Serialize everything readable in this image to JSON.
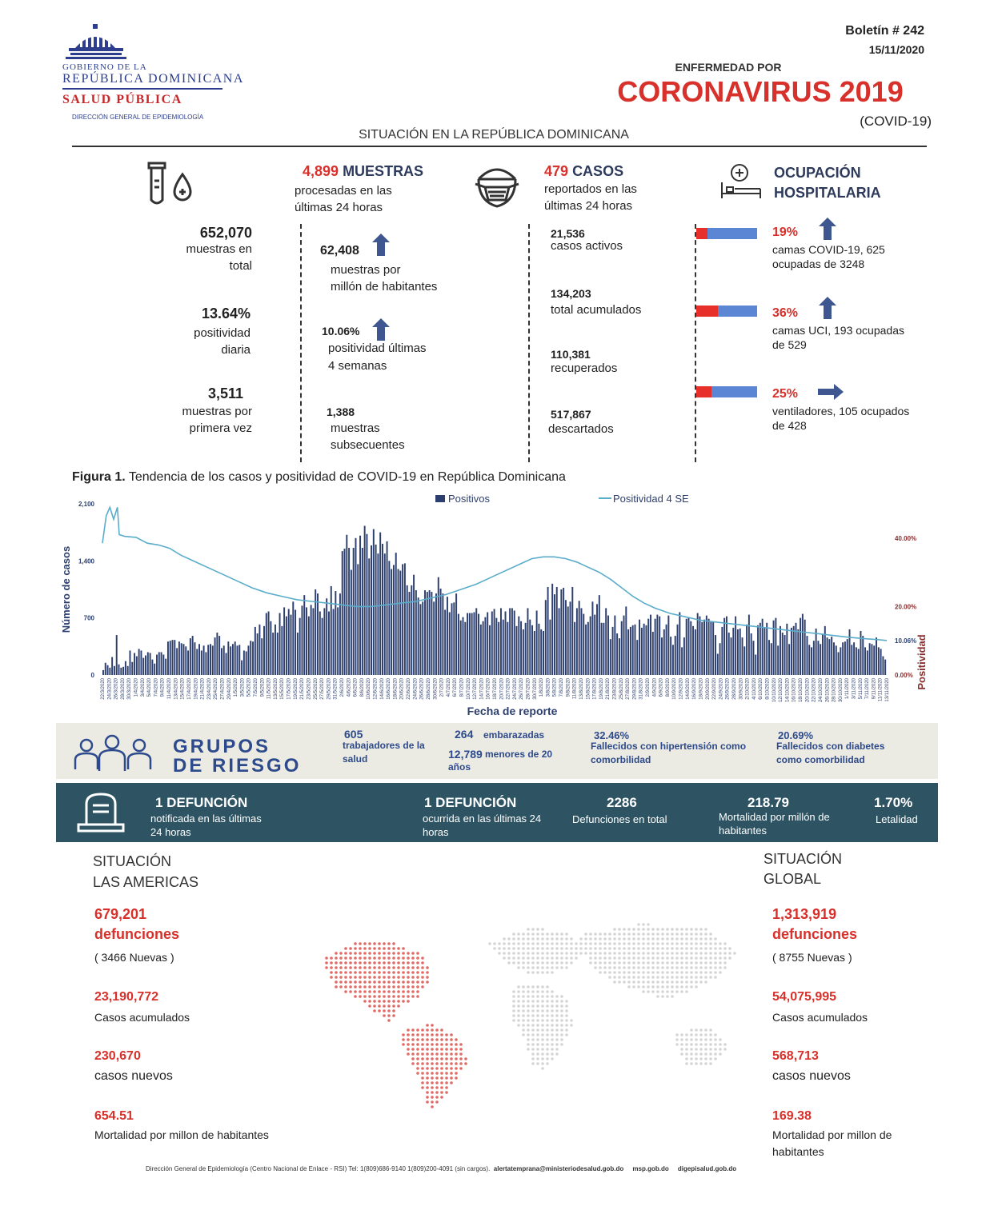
{
  "header": {
    "org_line1": "GOBIERNO DE LA",
    "org_line2": "REPÚBLICA DOMINICANA",
    "org_line3": "SALUD PÚBLICA",
    "org_line4": "DIRECCIÓN GENERAL DE EPIDEMIOLOGÍA",
    "bulletin": "Boletín # 242",
    "date": "15/11/2020",
    "subtitle": "ENFERMEDAD POR",
    "title": "CORONAVIRUS 2019",
    "title_paren": "(COVID-19)",
    "section": "SITUACIÓN EN LA REPÚBLICA DOMINICANA"
  },
  "muestras": {
    "head_num": "4,899",
    "head_label": "MUESTRAS",
    "head_sub1": "procesadas en las",
    "head_sub2": "últimas 24 horas",
    "left": [
      {
        "value": "652,070",
        "l1": "muestras en",
        "l2": "total"
      },
      {
        "value": "13.64%",
        "l1": "positividad",
        "l2": "diaria"
      },
      {
        "value": "3,511",
        "l1": "muestras por",
        "l2": "primera vez"
      }
    ],
    "right": [
      {
        "value": "62,408",
        "l1": "muestras por",
        "l2": "millón de habitantes"
      },
      {
        "value": "10.06%",
        "l1": "positividad últimas",
        "l2": "4 semanas"
      },
      {
        "value": "1,388",
        "l1": "muestras",
        "l2": "subsecuentes"
      }
    ]
  },
  "casos": {
    "head_num": "479",
    "head_label": "CASOS",
    "head_sub1": "reportados en las",
    "head_sub2": "últimas 24 horas",
    "items": [
      {
        "value": "21,536",
        "label": "casos activos"
      },
      {
        "value": "134,203",
        "label": "total acumulados"
      },
      {
        "value": "110,381",
        "label": "recuperados"
      },
      {
        "value": "517,867",
        "label": "descartados"
      }
    ]
  },
  "ocupacion": {
    "head1": "OCUPACIÓN",
    "head2": "HOSPITALARIA",
    "items": [
      {
        "pct": "19%",
        "fraction": 0.19,
        "trend": "up-arrow-icon",
        "l1": "camas COVID-19,  625",
        "l2": "ocupadas de 3248"
      },
      {
        "pct": "36%",
        "fraction": 0.36,
        "trend": "up-arrow-icon",
        "l1": "camas UCI,  193 ocupadas",
        "l2": "de 529"
      },
      {
        "pct": "25%",
        "fraction": 0.25,
        "trend": "right-arrow-icon",
        "l1": "ventiladores, 105 ocupados",
        "l2": "de 428"
      }
    ],
    "colors": {
      "occupied": "#e8302a",
      "free": "#5b86d4"
    }
  },
  "figure": {
    "caption_bold": "Figura 1.",
    "caption": " Tendencia de los casos y positividad de COVID-19 en República Dominicana",
    "legend_bars": "Positivos",
    "legend_line": "Positividad 4 SE",
    "ylabel": "Número de casos",
    "y2label": "Positividad",
    "xlabel": "Fecha de reporte",
    "yticks": [
      "2,100",
      "1,400",
      "700",
      "0"
    ],
    "y2ticks": [
      "40.00%",
      "20.00%",
      "10.06%",
      "0.00%"
    ]
  },
  "chart_data": {
    "type": "bar",
    "title": "",
    "xlabel": "Fecha de reporte",
    "ylabel": "Número de casos",
    "ylim": [
      0,
      2100
    ],
    "y2lim": [
      0,
      0.5
    ],
    "x_start": "22/3/2020",
    "x_end": "13/11/2020",
    "tick_labels": [
      "22/3/2020",
      "24/3/2020",
      "26/3/2020",
      "28/3/2020",
      "30/3/2020",
      "1/4/2020",
      "3/4/2020",
      "5/4/2020",
      "7/4/2020",
      "9/4/2020",
      "11/4/2020",
      "13/4/2020",
      "15/4/2020",
      "17/4/2020",
      "19/4/2020",
      "21/4/2020",
      "23/4/2020",
      "25/4/2020",
      "27/4/2020",
      "29/4/2020",
      "1/5/2020",
      "3/5/2020",
      "5/5/2020",
      "7/5/2020",
      "9/5/2020",
      "11/5/2020",
      "13/5/2020",
      "15/5/2020",
      "17/5/2020",
      "19/5/2020",
      "21/5/2020",
      "23/5/2020",
      "25/5/2020",
      "27/5/2020",
      "29/5/2020",
      "31/5/2020",
      "2/6/2020",
      "4/6/2020",
      "6/6/2020",
      "8/6/2020",
      "10/6/2020",
      "12/6/2020",
      "14/6/2020",
      "16/6/2020",
      "18/6/2020",
      "20/6/2020",
      "22/6/2020",
      "24/6/2020",
      "26/6/2020",
      "28/6/2020",
      "30/6/2020",
      "2/7/2020",
      "4/7/2020",
      "6/7/2020",
      "8/7/2020",
      "10/7/2020",
      "12/7/2020",
      "14/7/2020",
      "16/7/2020",
      "18/7/2020",
      "20/7/2020",
      "22/7/2020",
      "24/7/2020",
      "26/7/2020",
      "28/7/2020",
      "30/7/2020",
      "1/8/2020",
      "3/8/2020",
      "5/8/2020",
      "7/8/2020",
      "9/8/2020",
      "11/8/2020",
      "13/8/2020",
      "15/8/2020",
      "17/8/2020",
      "19/8/2020",
      "21/8/2020",
      "23/8/2020",
      "25/8/2020",
      "27/8/2020",
      "29/8/2020",
      "31/8/2020",
      "2/9/2020",
      "4/9/2020",
      "6/9/2020",
      "8/9/2020",
      "10/9/2020",
      "12/9/2020",
      "14/9/2020",
      "16/9/2020",
      "18/9/2020",
      "20/9/2020",
      "22/9/2020",
      "24/9/2020",
      "26/9/2020",
      "28/9/2020",
      "30/9/2020",
      "2/10/2020",
      "4/10/2020",
      "6/10/2020",
      "8/10/2020",
      "10/10/2020",
      "12/10/2020",
      "14/10/2020",
      "16/10/2020",
      "18/10/2020",
      "20/10/2020",
      "22/10/2020",
      "24/10/2020",
      "26/10/2020",
      "28/10/2020",
      "30/10/2020",
      "1/11/2020",
      "3/11/2020",
      "5/11/2020",
      "7/11/2020",
      "9/11/2020",
      "11/11/2020",
      "13/11/2020"
    ],
    "series": [
      {
        "name": "Positivos",
        "kind": "bar",
        "color": "#2d3f6e",
        "values": [
          60,
          150,
          120,
          90,
          220,
          110,
          490,
          130,
          90,
          100,
          170,
          110,
          300,
          160,
          270,
          230,
          320,
          300,
          210,
          240,
          280,
          270,
          190,
          140,
          250,
          280,
          280,
          250,
          200,
          410,
          420,
          430,
          430,
          330,
          410,
          390,
          380,
          350,
          300,
          450,
          480,
          400,
          320,
          380,
          300,
          360,
          280,
          370,
          380,
          360,
          460,
          520,
          480,
          330,
          360,
          270,
          410,
          350,
          380,
          410,
          360,
          370,
          180,
          300,
          290,
          360,
          420,
          410,
          590,
          510,
          620,
          450,
          600,
          760,
          780,
          660,
          520,
          620,
          520,
          760,
          600,
          830,
          720,
          810,
          740,
          900,
          800,
          520,
          700,
          850,
          980,
          830,
          720,
          860,
          820,
          1050,
          1000,
          780,
          700,
          820,
          940,
          780,
          1090,
          810,
          1030,
          830,
          1000,
          1520,
          1550,
          1720,
          1560,
          1290,
          1560,
          1680,
          1360,
          1710,
          1560,
          1830,
          1730,
          1430,
          1590,
          1790,
          1600,
          1490,
          1750,
          1610,
          1490,
          1640,
          1400,
          1300,
          1350,
          1500,
          1300,
          1280,
          1360,
          1370,
          1100,
          1020,
          1100,
          1230,
          1040,
          950,
          870,
          900,
          1040,
          1020,
          1040,
          1020,
          900,
          1000,
          1200,
          1060,
          1000,
          800,
          960,
          770,
          880,
          890,
          1000,
          750,
          670,
          710,
          650,
          760,
          760,
          760,
          770,
          820,
          750,
          620,
          660,
          710,
          770,
          610,
          780,
          810,
          700,
          650,
          820,
          680,
          780,
          650,
          820,
          820,
          790,
          600,
          720,
          660,
          560,
          640,
          820,
          680,
          610,
          540,
          790,
          630,
          560,
          540,
          920,
          1080,
          680,
          1120,
          990,
          1080,
          820,
          1050,
          1070,
          920,
          840,
          900,
          1080,
          650,
          820,
          910,
          820,
          750,
          620,
          650,
          720,
          900,
          740,
          870,
          980,
          640,
          640,
          820,
          730,
          440,
          590,
          730,
          510,
          450,
          660,
          730,
          840,
          560,
          590,
          610,
          620,
          430,
          680,
          580,
          630,
          610,
          690,
          740,
          530,
          690,
          740,
          720,
          460,
          560,
          620,
          730,
          470,
          370,
          480,
          620,
          770,
          340,
          460,
          690,
          710,
          660,
          600,
          560,
          760,
          720,
          650,
          680,
          730,
          690,
          660,
          650,
          490,
          260,
          390,
          590,
          700,
          720,
          520,
          460,
          580,
          720,
          560,
          570,
          460,
          350,
          620,
          740,
          510,
          420,
          250,
          610,
          640,
          690,
          580,
          640,
          430,
          390,
          670,
          700,
          360,
          600,
          520,
          490,
          630,
          380,
          580,
          600,
          640,
          560,
          700,
          750,
          680,
          480,
          370,
          340,
          420,
          570,
          420,
          380,
          500,
          600,
          460,
          440,
          470,
          400,
          360,
          280,
          340,
          400,
          410,
          440,
          560,
          370,
          400,
          340,
          320,
          540,
          480,
          340,
          300,
          390,
          380,
          360,
          460,
          340,
          320,
          230,
          190
        ]
      },
      {
        "name": "Positividad 4 SE",
        "kind": "line",
        "color": "#5aaccb",
        "points_pct": [
          [
            0,
            38.5
          ],
          [
            2,
            46.5
          ],
          [
            4,
            49.0
          ],
          [
            6,
            45.5
          ],
          [
            8,
            49.0
          ],
          [
            9,
            41.0
          ],
          [
            12,
            40.5
          ],
          [
            18,
            40.2
          ],
          [
            24,
            38.5
          ],
          [
            30,
            38.0
          ],
          [
            36,
            37.0
          ],
          [
            42,
            35.0
          ],
          [
            48,
            33.5
          ],
          [
            56,
            31.5
          ],
          [
            64,
            29.5
          ],
          [
            72,
            27.5
          ],
          [
            80,
            25.5
          ],
          [
            88,
            24.0
          ],
          [
            96,
            23.0
          ],
          [
            104,
            22.0
          ],
          [
            112,
            21.5
          ],
          [
            120,
            21.0
          ],
          [
            128,
            20.5
          ],
          [
            136,
            20.0
          ],
          [
            144,
            20.0
          ],
          [
            152,
            20.5
          ],
          [
            160,
            21.0
          ],
          [
            168,
            21.5
          ],
          [
            176,
            22.5
          ],
          [
            184,
            23.5
          ],
          [
            192,
            25.0
          ],
          [
            200,
            26.5
          ],
          [
            206,
            28.0
          ],
          [
            212,
            29.5
          ],
          [
            218,
            31.0
          ],
          [
            224,
            32.5
          ],
          [
            230,
            34.0
          ],
          [
            236,
            34.5
          ],
          [
            242,
            34.5
          ],
          [
            248,
            34.0
          ],
          [
            254,
            33.0
          ],
          [
            260,
            31.5
          ],
          [
            266,
            30.0
          ],
          [
            272,
            28.0
          ],
          [
            278,
            25.5
          ],
          [
            284,
            23.0
          ],
          [
            290,
            21.0
          ],
          [
            296,
            19.5
          ],
          [
            304,
            18.0
          ],
          [
            312,
            17.0
          ],
          [
            320,
            16.0
          ],
          [
            328,
            15.5
          ],
          [
            336,
            15.0
          ],
          [
            344,
            14.5
          ],
          [
            352,
            14.0
          ],
          [
            360,
            13.5
          ],
          [
            368,
            13.0
          ],
          [
            376,
            12.5
          ],
          [
            384,
            12.0
          ],
          [
            392,
            11.5
          ],
          [
            400,
            11.0
          ],
          [
            408,
            10.6
          ],
          [
            416,
            10.3
          ],
          [
            420,
            10.06
          ]
        ]
      }
    ]
  },
  "riesgo": {
    "title1": "GRUPOS",
    "title2": "DE RIESGO",
    "trab_num": "605",
    "trab_label1": "trabajadores de la",
    "trab_label2": "salud",
    "emb_num": "264",
    "emb_label": "embarazadas",
    "men_num": "12,789",
    "men_label1": "menores de 20",
    "men_label2": "años",
    "hip_pct": "32.46%",
    "hip_label1": "Fallecidos con hipertensión como",
    "hip_label2": "comorbilidad",
    "dia_pct": "20.69%",
    "dia_label1": "Fallecidos con diabetes",
    "dia_label2": "como comorbilidad"
  },
  "defunciones": {
    "d1_title": "1 DEFUNCIÓN",
    "d1_l1": "notificada en las últimas",
    "d1_l2": "24 horas",
    "d2_title": "1 DEFUNCIÓN",
    "d2_l1": "ocurrida en las últimas 24",
    "d2_l2": "horas",
    "total_num": "2286",
    "total_label": "Defunciones en total",
    "mort_num": "218.79",
    "mort_l1": "Mortalidad por millón de",
    "mort_l2": "habitantes",
    "let_num": "1.70%",
    "let_label": "Letalidad"
  },
  "americas": {
    "head1": "SITUACIÓN",
    "head2": "LAS AMERICAS",
    "def_num": "679,201",
    "def_label": "defunciones",
    "def_new": "( 3466 Nuevas )",
    "casos_num": "23,190,772",
    "casos_label": "Casos acumulados",
    "nuevos_num": "230,670",
    "nuevos_label": "casos nuevos",
    "mort_num": "654.51",
    "mort_label": "Mortalidad por millon de habitantes"
  },
  "global": {
    "head1": "SITUACIÓN",
    "head2": "GLOBAL",
    "def_num": "1,313,919",
    "def_label": "defunciones",
    "def_new": "( 8755 Nuevas )",
    "casos_num": "54,075,995",
    "casos_label": "Casos acumulados",
    "nuevos_num": "568,713",
    "nuevos_label": "casos nuevos",
    "mort_num": "169.38",
    "mort_l1": "Mortalidad por millon de",
    "mort_l2": "habitantes"
  },
  "footer": {
    "text": "Dirección General de Epidemiología (Centro Nacional de Enlace - RSI) Tel: 1(809)686-9140   1(809)200-4091 (sin cargos).",
    "email": "alertatemprana@ministeriodesalud.gob.do",
    "site1": "msp.gob.do",
    "site2": "digepisalud.gob.do"
  }
}
